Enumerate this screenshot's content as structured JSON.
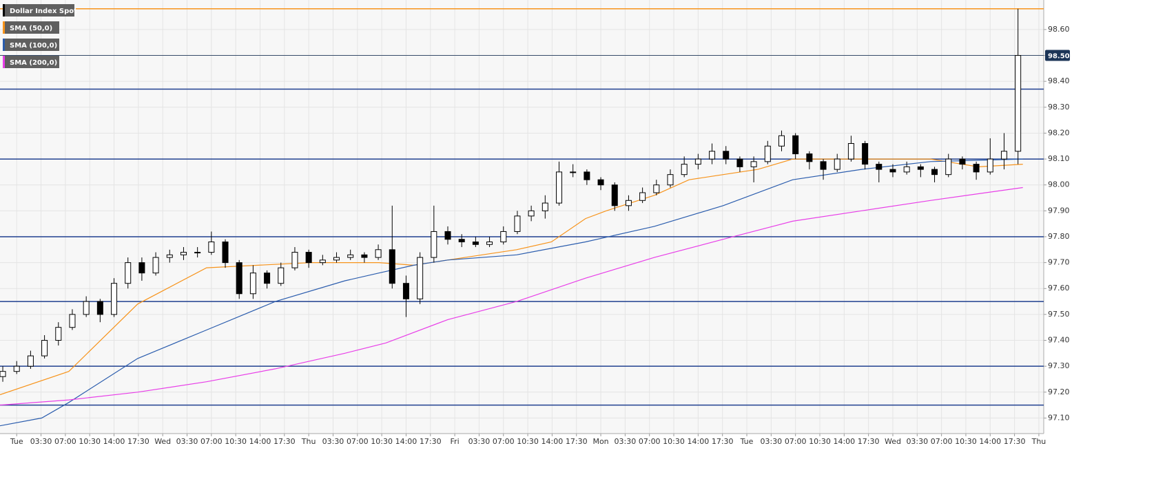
{
  "chart_data": {
    "type": "candlestick",
    "grid": true,
    "xlim": [
      -2.4,
      147.7
    ],
    "ylim": [
      97.04,
      98.714
    ],
    "xticks": [
      {
        "value": 0,
        "label": "Tue"
      },
      {
        "value": 3.5,
        "label": "03:30"
      },
      {
        "value": 7,
        "label": "07:00"
      },
      {
        "value": 10.5,
        "label": "10:30"
      },
      {
        "value": 14,
        "label": "14:00"
      },
      {
        "value": 17.5,
        "label": "17:30"
      },
      {
        "value": 21,
        "label": "Wed"
      },
      {
        "value": 24.5,
        "label": "03:30"
      },
      {
        "value": 28,
        "label": "07:00"
      },
      {
        "value": 31.5,
        "label": "10:30"
      },
      {
        "value": 35,
        "label": "14:00"
      },
      {
        "value": 38.5,
        "label": "17:30"
      },
      {
        "value": 42,
        "label": "Thu"
      },
      {
        "value": 45.5,
        "label": "03:30"
      },
      {
        "value": 49,
        "label": "07:00"
      },
      {
        "value": 52.5,
        "label": "10:30"
      },
      {
        "value": 56,
        "label": "14:00"
      },
      {
        "value": 59.5,
        "label": "17:30"
      },
      {
        "value": 63,
        "label": "Fri"
      },
      {
        "value": 66.5,
        "label": "03:30"
      },
      {
        "value": 70,
        "label": "07:00"
      },
      {
        "value": 73.5,
        "label": "10:30"
      },
      {
        "value": 77,
        "label": "14:00"
      },
      {
        "value": 80.5,
        "label": "17:30"
      },
      {
        "value": 84,
        "label": "Mon"
      },
      {
        "value": 87.5,
        "label": "03:30"
      },
      {
        "value": 91,
        "label": "07:00"
      },
      {
        "value": 94.5,
        "label": "10:30"
      },
      {
        "value": 98,
        "label": "14:00"
      },
      {
        "value": 101.5,
        "label": "17:30"
      },
      {
        "value": 105,
        "label": "Tue"
      },
      {
        "value": 108.5,
        "label": "03:30"
      },
      {
        "value": 112,
        "label": "07:00"
      },
      {
        "value": 115.5,
        "label": "10:30"
      },
      {
        "value": 119,
        "label": "14:00"
      },
      {
        "value": 122.5,
        "label": "17:30"
      },
      {
        "value": 126,
        "label": "Wed"
      },
      {
        "value": 129.5,
        "label": "03:30"
      },
      {
        "value": 133,
        "label": "07:00"
      },
      {
        "value": 136.5,
        "label": "10:30"
      },
      {
        "value": 140,
        "label": "14:00"
      },
      {
        "value": 143.5,
        "label": "17:30"
      },
      {
        "value": 147,
        "label": "Thu"
      }
    ],
    "yticks": [
      {
        "value": 97.1,
        "label": "97.10"
      },
      {
        "value": 97.2,
        "label": "97.20"
      },
      {
        "value": 97.3,
        "label": "97.30"
      },
      {
        "value": 97.4,
        "label": "97.40"
      },
      {
        "value": 97.5,
        "label": "97.50"
      },
      {
        "value": 97.6,
        "label": "97.60"
      },
      {
        "value": 97.7,
        "label": "97.70"
      },
      {
        "value": 97.8,
        "label": "97.80"
      },
      {
        "value": 97.9,
        "label": "97.90"
      },
      {
        "value": 98.0,
        "label": "98.00"
      },
      {
        "value": 98.1,
        "label": "98.10"
      },
      {
        "value": 98.2,
        "label": "98.20"
      },
      {
        "value": 98.3,
        "label": "98.30"
      },
      {
        "value": 98.4,
        "label": "98.40"
      },
      {
        "value": 98.5,
        "label": "98.50"
      },
      {
        "value": 98.6,
        "label": "98.60"
      }
    ],
    "hlines": [
      {
        "value": 98.68,
        "color": "#f7931a"
      },
      {
        "value": 98.37,
        "color": "#1f3f8f"
      },
      {
        "value": 98.1,
        "color": "#1f3f8f"
      },
      {
        "value": 97.8,
        "color": "#1f3f8f"
      },
      {
        "value": 97.55,
        "color": "#1f3f8f"
      },
      {
        "value": 97.3,
        "color": "#1f3f8f"
      },
      {
        "value": 97.15,
        "color": "#1f3f8f"
      }
    ],
    "last_price": {
      "value": 98.5,
      "label": "98.50",
      "color": "#1c3557"
    },
    "series": [
      {
        "name": "Dollar Index Spot",
        "type": "candlestick",
        "color": "#000000",
        "x": [
          -2,
          0,
          2,
          4,
          6,
          8,
          10,
          12,
          14,
          16,
          18,
          20,
          22,
          24,
          26,
          28,
          30,
          32,
          34,
          36,
          38,
          40,
          42,
          44,
          46,
          48,
          50,
          52,
          54,
          56,
          58,
          60,
          62,
          64,
          66,
          68,
          70,
          72,
          74,
          76,
          78,
          80,
          82,
          84,
          86,
          88,
          90,
          92,
          94,
          96,
          98,
          100,
          102,
          104,
          106,
          108,
          110,
          112,
          114,
          116,
          118,
          120,
          122,
          124,
          126,
          128,
          130,
          132,
          134,
          136,
          138,
          140,
          142,
          144
        ],
        "open": [
          97.26,
          97.28,
          97.3,
          97.34,
          97.4,
          97.45,
          97.5,
          97.55,
          97.5,
          97.62,
          97.7,
          97.66,
          97.72,
          97.73,
          97.74,
          97.74,
          97.78,
          97.7,
          97.58,
          97.66,
          97.62,
          97.68,
          97.74,
          97.7,
          97.71,
          97.72,
          97.73,
          97.72,
          97.75,
          97.62,
          97.56,
          97.72,
          97.82,
          97.79,
          97.78,
          97.77,
          97.78,
          97.82,
          97.88,
          97.9,
          97.93,
          98.05,
          98.05,
          98.02,
          98.0,
          97.92,
          97.94,
          97.97,
          98.0,
          98.04,
          98.08,
          98.1,
          98.13,
          98.1,
          98.07,
          98.09,
          98.15,
          98.19,
          98.12,
          98.09,
          98.06,
          98.1,
          98.16,
          98.08,
          98.06,
          98.05,
          98.07,
          98.06,
          98.04,
          98.1,
          98.08,
          98.05,
          98.1,
          98.13
        ],
        "high": [
          97.3,
          97.32,
          97.36,
          97.42,
          97.47,
          97.52,
          97.57,
          97.56,
          97.64,
          97.72,
          97.72,
          97.74,
          97.75,
          97.76,
          97.76,
          97.82,
          97.79,
          97.71,
          97.69,
          97.67,
          97.7,
          97.76,
          97.75,
          97.73,
          97.74,
          97.75,
          97.74,
          97.77,
          97.92,
          97.65,
          97.74,
          97.92,
          97.84,
          97.81,
          97.8,
          97.8,
          97.84,
          97.9,
          97.92,
          97.96,
          98.09,
          98.08,
          98.06,
          98.03,
          98.01,
          97.96,
          97.99,
          98.02,
          98.06,
          98.11,
          98.12,
          98.16,
          98.15,
          98.11,
          98.11,
          98.17,
          98.21,
          98.2,
          98.13,
          98.1,
          98.12,
          98.19,
          98.17,
          98.09,
          98.08,
          98.09,
          98.08,
          98.07,
          98.12,
          98.11,
          98.09,
          98.18,
          98.2,
          98.68
        ],
        "low": [
          97.24,
          97.27,
          97.29,
          97.33,
          97.38,
          97.44,
          97.49,
          97.47,
          97.49,
          97.6,
          97.63,
          97.65,
          97.7,
          97.71,
          97.72,
          97.73,
          97.68,
          97.56,
          97.56,
          97.6,
          97.61,
          97.67,
          97.68,
          97.69,
          97.7,
          97.71,
          97.7,
          97.71,
          97.6,
          97.49,
          97.54,
          97.7,
          97.77,
          97.76,
          97.76,
          97.76,
          97.77,
          97.81,
          97.86,
          97.87,
          97.92,
          98.03,
          98.0,
          97.98,
          97.9,
          97.9,
          97.93,
          97.96,
          97.99,
          98.03,
          98.06,
          98.08,
          98.08,
          98.05,
          98.01,
          98.08,
          98.13,
          98.1,
          98.06,
          98.02,
          98.05,
          98.09,
          98.06,
          98.01,
          98.03,
          98.04,
          98.03,
          98.01,
          98.03,
          98.06,
          98.02,
          98.04,
          98.06,
          98.08
        ],
        "close": [
          97.28,
          97.3,
          97.34,
          97.4,
          97.45,
          97.5,
          97.55,
          97.5,
          97.62,
          97.7,
          97.66,
          97.72,
          97.73,
          97.74,
          97.74,
          97.78,
          97.7,
          97.58,
          97.66,
          97.62,
          97.68,
          97.74,
          97.7,
          97.71,
          97.72,
          97.73,
          97.72,
          97.75,
          97.62,
          97.56,
          97.72,
          97.82,
          97.79,
          97.78,
          97.77,
          97.78,
          97.82,
          97.88,
          97.9,
          97.93,
          98.05,
          98.05,
          98.02,
          98.0,
          97.92,
          97.94,
          97.97,
          98.0,
          98.04,
          98.08,
          98.1,
          98.13,
          98.1,
          98.07,
          98.09,
          98.15,
          98.19,
          98.12,
          98.09,
          98.06,
          98.1,
          98.16,
          98.08,
          98.06,
          98.05,
          98.07,
          98.06,
          98.04,
          98.1,
          98.08,
          98.05,
          98.1,
          98.13,
          98.5
        ]
      },
      {
        "name": "SMA (50,0)",
        "type": "line",
        "color": "#f7931a",
        "x": [
          -2.4,
          7.5,
          17.4,
          27.3,
          42.2,
          52.1,
          57.1,
          62.0,
          71.9,
          76.9,
          81.8,
          84.8,
          91.7,
          96.7,
          101.6,
          106.6,
          111.6,
          121.5,
          131.4,
          138.3,
          144.7
        ],
        "values": [
          97.19,
          97.28,
          97.54,
          97.68,
          97.7,
          97.7,
          97.69,
          97.71,
          97.75,
          97.78,
          97.87,
          97.9,
          97.96,
          98.02,
          98.04,
          98.06,
          98.1,
          98.1,
          98.1,
          98.07,
          98.08
        ]
      },
      {
        "name": "SMA (100,0)",
        "type": "line",
        "color": "#2a5cad",
        "x": [
          -2.4,
          3.6,
          7.5,
          17.4,
          27.3,
          37.2,
          47.2,
          52.1,
          57.1,
          62.0,
          71.9,
          81.8,
          91.7,
          101.6,
          111.6,
          121.5,
          131.4,
          144.7
        ],
        "values": [
          97.07,
          97.1,
          97.16,
          97.33,
          97.44,
          97.55,
          97.63,
          97.66,
          97.69,
          97.71,
          97.73,
          97.78,
          97.84,
          97.92,
          98.02,
          98.06,
          98.09,
          98.1
        ]
      },
      {
        "name": "SMA (200,0)",
        "type": "line",
        "color": "#e83ee8",
        "x": [
          -2.4,
          7.5,
          17.4,
          27.3,
          37.2,
          47.2,
          53.1,
          62.0,
          71.9,
          81.8,
          91.7,
          101.6,
          111.6,
          121.5,
          131.4,
          144.7
        ],
        "values": [
          97.15,
          97.17,
          97.2,
          97.24,
          97.29,
          97.35,
          97.39,
          97.48,
          97.55,
          97.64,
          97.72,
          97.79,
          97.86,
          97.9,
          97.94,
          97.99
        ]
      }
    ]
  }
}
